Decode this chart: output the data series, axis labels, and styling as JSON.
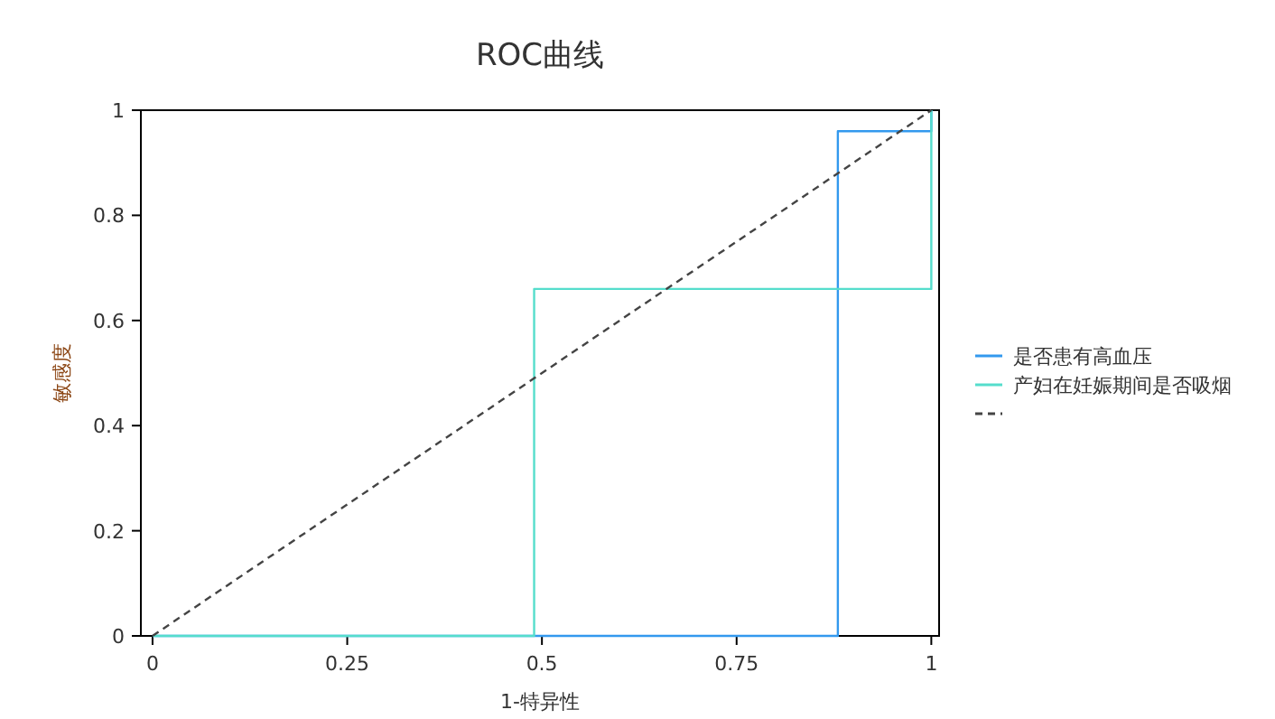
{
  "chart_data": {
    "type": "line",
    "title": "ROC曲线",
    "xlabel": "1-特异性",
    "ylabel": "敏感度",
    "xlim": [
      -0.015,
      1.01
    ],
    "ylim": [
      0,
      1
    ],
    "xticks": [
      0,
      0.25,
      0.5,
      0.75,
      1
    ],
    "yticks": [
      0,
      0.2,
      0.4,
      0.6,
      0.8,
      1
    ],
    "grid": false,
    "legend": "right",
    "marker": "none",
    "series": [
      {
        "name": "是否患有高血压",
        "color": "#3399ee",
        "x": [
          0,
          0.88,
          0.88,
          1,
          1
        ],
        "values": [
          0,
          0,
          0.96,
          0.96,
          1
        ]
      },
      {
        "name": "产妇在妊娠期间是否吸烟",
        "color": "#55ddcc",
        "x": [
          0,
          0.49,
          0.49,
          1,
          1
        ],
        "values": [
          0,
          0,
          0.66,
          0.66,
          1
        ]
      },
      {
        "color": "#444444",
        "line_style": "dashed",
        "x": [
          0,
          1
        ],
        "values": [
          0,
          1
        ]
      }
    ]
  }
}
